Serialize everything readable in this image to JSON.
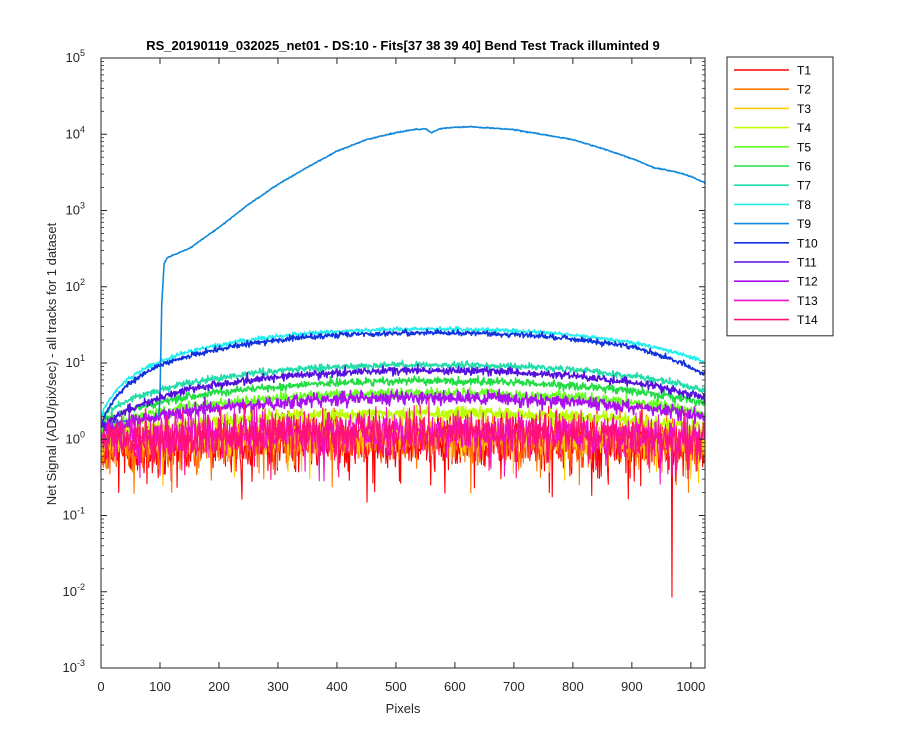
{
  "chart_data": {
    "type": "line",
    "title": "RS_20190119_032025_net01 - DS:10 - Fits[37  38  39  40]   Bend Test       Track illuminted 9",
    "xlabel": "Pixels",
    "ylabel": "Net Signal (ADU/pix/sec) - all tracks for 1 dataset",
    "xlim": [
      0,
      1024
    ],
    "ylim": [
      0.001,
      100000
    ],
    "yscale": "log",
    "x_ticks": [
      0,
      100,
      200,
      300,
      400,
      500,
      600,
      700,
      800,
      900,
      1000
    ],
    "x_tick_labels": [
      "0",
      "100",
      "200",
      "300",
      "400",
      "500",
      "600",
      "700",
      "800",
      "900",
      "1000"
    ],
    "y_ticks": [
      {
        "value": 0.001,
        "base": "10",
        "exp": "-3"
      },
      {
        "value": 0.01,
        "base": "10",
        "exp": "-2"
      },
      {
        "value": 0.1,
        "base": "10",
        "exp": "-1"
      },
      {
        "value": 1,
        "base": "10",
        "exp": "0"
      },
      {
        "value": 10,
        "base": "10",
        "exp": "1"
      },
      {
        "value": 100,
        "base": "10",
        "exp": "2"
      },
      {
        "value": 1000,
        "base": "10",
        "exp": "3"
      },
      {
        "value": 10000,
        "base": "10",
        "exp": "4"
      },
      {
        "value": 100000,
        "base": "10",
        "exp": "5"
      }
    ],
    "grid": false,
    "legend_location": "outside-top-right",
    "series": [
      {
        "name": "T1",
        "color": "#ff0000",
        "kind": "noise",
        "base": 0.8,
        "noise": 0.22,
        "spikes": [
          [
            451,
            0.15
          ],
          [
            968,
            0.0085
          ],
          [
            30,
            0.2
          ],
          [
            760,
            0.2
          ]
        ]
      },
      {
        "name": "T2",
        "color": "#ff7700",
        "kind": "noise",
        "base": 0.85,
        "noise": 0.2,
        "spikes": [
          [
            120,
            0.2
          ]
        ]
      },
      {
        "name": "T3",
        "color": "#ffcc00",
        "kind": "noise",
        "base": 1.0,
        "noise": 0.15
      },
      {
        "name": "T4",
        "color": "#bbff00",
        "kind": "dome",
        "edge": 1.0,
        "peak": 2.2,
        "noise": 0.1
      },
      {
        "name": "T5",
        "color": "#66ff22",
        "kind": "dome",
        "edge": 1.4,
        "peak": 4.0,
        "noise": 0.08
      },
      {
        "name": "T6",
        "color": "#22dd44",
        "kind": "dome",
        "edge": 1.7,
        "peak": 5.8,
        "noise": 0.06
      },
      {
        "name": "T7",
        "color": "#22ddaa",
        "kind": "dome",
        "edge": 2.0,
        "peak": 9.5,
        "noise": 0.05
      },
      {
        "name": "T8",
        "color": "#22eeee",
        "kind": "dome",
        "edge": 2.0,
        "peak": 28,
        "noise": 0.03
      },
      {
        "name": "T9",
        "color": "#1188dd",
        "kind": "illuminated",
        "points": [
          [
            0,
            1.6
          ],
          [
            60,
            1.8
          ],
          [
            98,
            2.0
          ],
          [
            100,
            3.5
          ],
          [
            103,
            60
          ],
          [
            107,
            200
          ],
          [
            112,
            240
          ],
          [
            150,
            320
          ],
          [
            200,
            600
          ],
          [
            250,
            1200
          ],
          [
            300,
            2200
          ],
          [
            350,
            3700
          ],
          [
            400,
            6000
          ],
          [
            450,
            8500
          ],
          [
            500,
            10500
          ],
          [
            530,
            11500
          ],
          [
            550,
            11800
          ],
          [
            560,
            10500
          ],
          [
            575,
            11800
          ],
          [
            600,
            12300
          ],
          [
            630,
            12500
          ],
          [
            700,
            11500
          ],
          [
            800,
            8500
          ],
          [
            850,
            6500
          ],
          [
            900,
            4800
          ],
          [
            940,
            3600
          ],
          [
            975,
            3200
          ],
          [
            1000,
            2800
          ],
          [
            1024,
            2300
          ]
        ]
      },
      {
        "name": "T10",
        "color": "#1133dd",
        "kind": "dome",
        "edge": 1.5,
        "peak": 25,
        "noise": 0.04,
        "tail": 6.5
      },
      {
        "name": "T11",
        "color": "#5511dd",
        "kind": "dome",
        "edge": 1.4,
        "peak": 8.0,
        "noise": 0.06
      },
      {
        "name": "T12",
        "color": "#aa11ee",
        "kind": "dome",
        "edge": 1.3,
        "peak": 3.5,
        "noise": 0.1
      },
      {
        "name": "T13",
        "color": "#ee11cc",
        "kind": "noise",
        "base": 1.1,
        "noise": 0.17
      },
      {
        "name": "T14",
        "color": "#ff1177",
        "kind": "noise",
        "base": 1.05,
        "noise": 0.18
      }
    ]
  }
}
